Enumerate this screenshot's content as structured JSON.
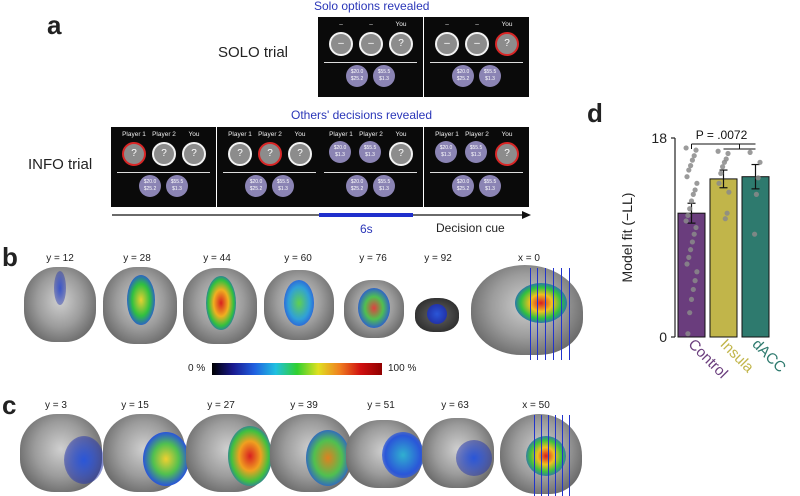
{
  "panels": {
    "a": "a",
    "b": "b",
    "c": "c",
    "d": "d"
  },
  "rows": {
    "solo": "SOLO trial",
    "info": "INFO trial"
  },
  "notes": {
    "solo_revealed": "Solo options revealed",
    "others_revealed": "Others' decisions revealed",
    "duration": "6s",
    "decision_cue": "Decision cue"
  },
  "headers": {
    "dash": "–",
    "you": "You",
    "p1": "Player 1",
    "p2": "Player 2"
  },
  "option_mark": "?",
  "payoffs": {
    "a": "$20.0",
    "b": "$55.5",
    "c": "$25.2",
    "d": "$1.3"
  },
  "slices_b": [
    "y = 12",
    "y = 28",
    "y = 44",
    "y = 60",
    "y = 76",
    "y = 92",
    "x = 0"
  ],
  "slices_c": [
    "y = 3",
    "y = 15",
    "y = 27",
    "y = 39",
    "y = 51",
    "y = 63",
    "x = 50"
  ],
  "colorbar": {
    "min": "0 %",
    "max": "100 %"
  },
  "colors": {
    "control": "#6a3d7d",
    "insula": "#c1b54a",
    "dacc": "#2e7a6e",
    "accent_blue": "#2a36b8",
    "red": "#d92626"
  },
  "chart_data": {
    "type": "bar",
    "title": "",
    "categories": [
      "Control",
      "Insula",
      "dACC"
    ],
    "values": [
      11.2,
      14.3,
      14.5
    ],
    "errors": [
      0.9,
      0.8,
      1.1
    ],
    "ylabel": "Model fit (−LL)",
    "xlabel": "",
    "ylim": [
      0,
      18
    ],
    "yticks": [
      "0",
      "18"
    ],
    "annotation": "P = .0072",
    "points": [
      [
        17.1,
        16.9,
        16.4,
        16.0,
        15.5,
        15.1,
        14.5,
        13.9,
        13.3,
        12.9,
        12.3,
        11.6,
        11.0,
        10.5,
        9.9,
        9.3,
        8.6,
        7.9,
        7.2,
        6.6,
        5.9,
        5.1,
        4.3,
        3.4,
        2.2,
        0.3
      ],
      [
        16.8,
        16.6,
        16.1,
        15.8,
        15.4,
        14.8,
        13.9,
        13.1,
        11.2,
        10.7
      ],
      [
        16.7,
        15.8,
        14.4,
        12.9,
        9.3
      ]
    ]
  }
}
